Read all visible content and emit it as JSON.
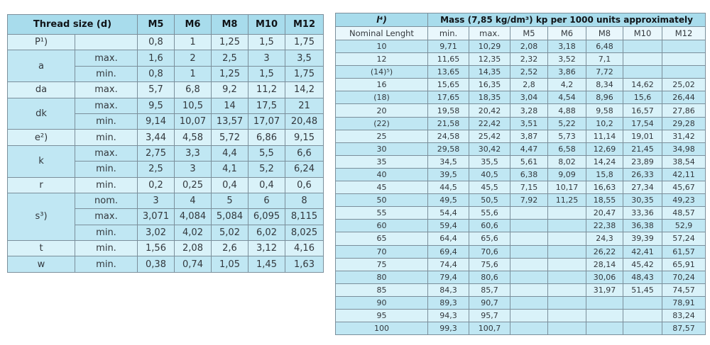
{
  "colors": {
    "page_bg": "#ffffff",
    "header_bg": "#a8dcec",
    "subheader_bg": "#e9f7fc",
    "band_dark": "#c0e7f3",
    "band_light": "#d9f2f9",
    "border_inner": "#7b8f9b",
    "border_outer": "#4f616b",
    "text": "#33383d"
  },
  "left_table": {
    "title": "Thread size (d)",
    "columns": [
      "M5",
      "M6",
      "M8",
      "M10",
      "M12"
    ],
    "groups": [
      {
        "label": "P¹)",
        "band": "light",
        "rows": [
          {
            "sub": "",
            "values": [
              "0,8",
              "1",
              "1,25",
              "1,5",
              "1,75"
            ]
          }
        ]
      },
      {
        "label": "a",
        "band": "dark",
        "rows": [
          {
            "sub": "max.",
            "values": [
              "1,6",
              "2",
              "2,5",
              "3",
              "3,5"
            ]
          },
          {
            "sub": "min.",
            "values": [
              "0,8",
              "1",
              "1,25",
              "1,5",
              "1,75"
            ]
          }
        ]
      },
      {
        "label": "da",
        "band": "light",
        "rows": [
          {
            "sub": "max.",
            "values": [
              "5,7",
              "6,8",
              "9,2",
              "11,2",
              "14,2"
            ]
          }
        ]
      },
      {
        "label": "dk",
        "band": "dark",
        "rows": [
          {
            "sub": "max.",
            "values": [
              "9,5",
              "10,5",
              "14",
              "17,5",
              "21"
            ]
          },
          {
            "sub": "min.",
            "values": [
              "9,14",
              "10,07",
              "13,57",
              "17,07",
              "20,48"
            ]
          }
        ]
      },
      {
        "label": "e²)",
        "band": "light",
        "rows": [
          {
            "sub": "min.",
            "values": [
              "3,44",
              "4,58",
              "5,72",
              "6,86",
              "9,15"
            ]
          }
        ]
      },
      {
        "label": "k",
        "band": "dark",
        "rows": [
          {
            "sub": "max.",
            "values": [
              "2,75",
              "3,3",
              "4,4",
              "5,5",
              "6,6"
            ]
          },
          {
            "sub": "min.",
            "values": [
              "2,5",
              "3",
              "4,1",
              "5,2",
              "6,24"
            ]
          }
        ]
      },
      {
        "label": "r",
        "band": "light",
        "rows": [
          {
            "sub": "min.",
            "values": [
              "0,2",
              "0,25",
              "0,4",
              "0,4",
              "0,6"
            ]
          }
        ]
      },
      {
        "label": "s³)",
        "band": "dark",
        "rows": [
          {
            "sub": "nom.",
            "values": [
              "3",
              "4",
              "5",
              "6",
              "8"
            ]
          },
          {
            "sub": "max.",
            "values": [
              "3,071",
              "4,084",
              "5,084",
              "6,095",
              "8,115"
            ]
          },
          {
            "sub": "min.",
            "values": [
              "3,02",
              "4,02",
              "5,02",
              "6,02",
              "8,025"
            ]
          }
        ]
      },
      {
        "label": "t",
        "band": "light",
        "rows": [
          {
            "sub": "min.",
            "values": [
              "1,56",
              "2,08",
              "2,6",
              "3,12",
              "4,16"
            ]
          }
        ]
      },
      {
        "label": "w",
        "band": "dark",
        "rows": [
          {
            "sub": "min.",
            "values": [
              "0,38",
              "0,74",
              "1,05",
              "1,45",
              "1,63"
            ]
          }
        ]
      }
    ]
  },
  "right_table": {
    "corner_label": "l⁴)",
    "title": "Mass (7,85 kg/dm³) kp per 1000 units approximately",
    "subheader": [
      "Nominal Lenght",
      "min.",
      "max.",
      "M5",
      "M6",
      "M8",
      "M10",
      "M12"
    ],
    "rows": [
      [
        "10",
        "9,71",
        "10,29",
        "2,08",
        "3,18",
        "6,48",
        "",
        ""
      ],
      [
        "12",
        "11,65",
        "12,35",
        "2,32",
        "3,52",
        "7,1",
        "",
        ""
      ],
      [
        "(14)⁵)",
        "13,65",
        "14,35",
        "2,52",
        "3,86",
        "7,72",
        "",
        ""
      ],
      [
        "16",
        "15,65",
        "16,35",
        "2,8",
        "4,2",
        "8,34",
        "14,62",
        "25,02"
      ],
      [
        "(18)",
        "17,65",
        "18,35",
        "3,04",
        "4,54",
        "8,96",
        "15,6",
        "26,44"
      ],
      [
        "20",
        "19,58",
        "20,42",
        "3,28",
        "4,88",
        "9,58",
        "16,57",
        "27,86"
      ],
      [
        "(22)",
        "21,58",
        "22,42",
        "3,51",
        "5,22",
        "10,2",
        "17,54",
        "29,28"
      ],
      [
        "25",
        "24,58",
        "25,42",
        "3,87",
        "5,73",
        "11,14",
        "19,01",
        "31,42"
      ],
      [
        "30",
        "29,58",
        "30,42",
        "4,47",
        "6,58",
        "12,69",
        "21,45",
        "34,98"
      ],
      [
        "35",
        "34,5",
        "35,5",
        "5,61",
        "8,02",
        "14,24",
        "23,89",
        "38,54"
      ],
      [
        "40",
        "39,5",
        "40,5",
        "6,38",
        "9,09",
        "15,8",
        "26,33",
        "42,11"
      ],
      [
        "45",
        "44,5",
        "45,5",
        "7,15",
        "10,17",
        "16,63",
        "27,34",
        "45,67"
      ],
      [
        "50",
        "49,5",
        "50,5",
        "7,92",
        "11,25",
        "18,55",
        "30,35",
        "49,23"
      ],
      [
        "55",
        "54,4",
        "55,6",
        "",
        "",
        "20,47",
        "33,36",
        "48,57"
      ],
      [
        "60",
        "59,4",
        "60,6",
        "",
        "",
        "22,38",
        "36,38",
        "52,9"
      ],
      [
        "65",
        "64,4",
        "65,6",
        "",
        "",
        "24,3",
        "39,39",
        "57,24"
      ],
      [
        "70",
        "69,4",
        "70,6",
        "",
        "",
        "26,22",
        "42,41",
        "61,57"
      ],
      [
        "75",
        "74,4",
        "75,6",
        "",
        "",
        "28,14",
        "45,42",
        "65,91"
      ],
      [
        "80",
        "79,4",
        "80,6",
        "",
        "",
        "30,06",
        "48,43",
        "70,24"
      ],
      [
        "85",
        "84,3",
        "85,7",
        "",
        "",
        "31,97",
        "51,45",
        "74,57"
      ],
      [
        "90",
        "89,3",
        "90,7",
        "",
        "",
        "",
        "",
        "78,91"
      ],
      [
        "95",
        "94,3",
        "95,7",
        "",
        "",
        "",
        "",
        "83,24"
      ],
      [
        "100",
        "99,3",
        "100,7",
        "",
        "",
        "",
        "",
        "87,57"
      ]
    ]
  }
}
